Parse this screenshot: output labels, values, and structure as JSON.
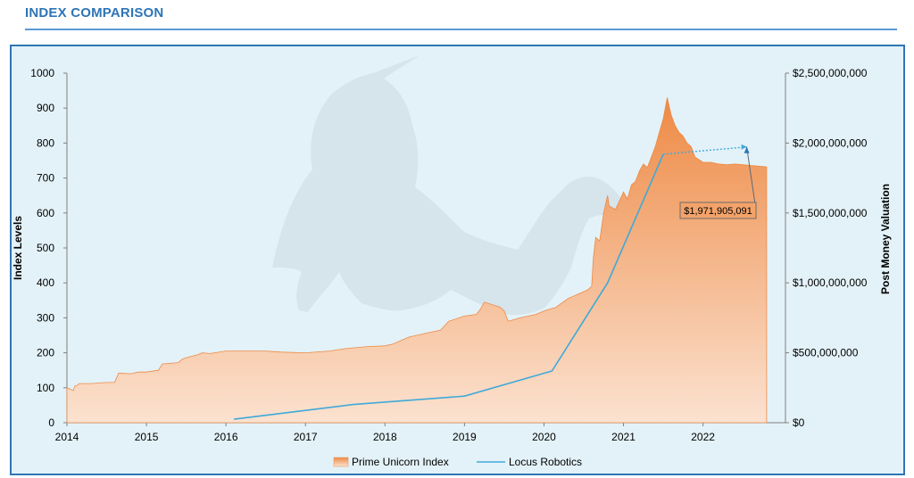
{
  "header": {
    "title": "INDEX COMPARISON"
  },
  "colors": {
    "index_fill_top": "#ee8a45",
    "index_fill_bottom": "#fbe2d0",
    "locus_line": "#3fa9d9",
    "frame": "#2e75b6",
    "panel": "#e3f2f8"
  },
  "chart_data": {
    "type": "area",
    "title": "",
    "ylabel": "Index Levels",
    "y2label": "Post Money Valuation",
    "xlim": [
      2014,
      2022.88
    ],
    "ylim": [
      0,
      1000
    ],
    "y2lim": [
      0,
      2500000000
    ],
    "x_ticks": [
      "2014",
      "2015",
      "2016",
      "2017",
      "2018",
      "2019",
      "2020",
      "2021",
      "2022"
    ],
    "y_ticks": [
      "0",
      "100",
      "200",
      "300",
      "400",
      "500",
      "600",
      "700",
      "800",
      "900",
      "1000"
    ],
    "y2_ticks": [
      "$0",
      "$500,000,000",
      "$1,000,000,000",
      "$1,500,000,000",
      "$2,000,000,000",
      "$2,500,000,000"
    ],
    "grid": false,
    "legend_position": "bottom",
    "series": [
      {
        "name": "Prime Unicorn Index",
        "kind": "area",
        "axis": "left",
        "x": [
          2014.0,
          2014.05,
          2014.08,
          2014.1,
          2014.14,
          2014.15,
          2014.3,
          2014.5,
          2014.6,
          2014.65,
          2014.8,
          2014.9,
          2015.0,
          2015.15,
          2015.2,
          2015.4,
          2015.45,
          2015.5,
          2015.65,
          2015.7,
          2015.8,
          2016.0,
          2016.5,
          2016.7,
          2017.0,
          2017.3,
          2017.5,
          2017.8,
          2018.0,
          2018.1,
          2018.3,
          2018.5,
          2018.7,
          2018.8,
          2019.0,
          2019.15,
          2019.2,
          2019.25,
          2019.45,
          2019.5,
          2019.55,
          2019.7,
          2019.9,
          2020.0,
          2020.15,
          2020.3,
          2020.45,
          2020.55,
          2020.6,
          2020.62,
          2020.65,
          2020.7,
          2020.75,
          2020.8,
          2020.82,
          2020.9,
          2021.0,
          2021.05,
          2021.1,
          2021.15,
          2021.2,
          2021.25,
          2021.3,
          2021.35,
          2021.4,
          2021.45,
          2021.5,
          2021.55,
          2021.6,
          2021.65,
          2021.7,
          2021.75,
          2021.8,
          2021.85,
          2021.9,
          2022.0,
          2022.1,
          2022.2,
          2022.3,
          2022.4,
          2022.5,
          2022.6,
          2022.7,
          2022.8
        ],
        "values": [
          100,
          95,
          92,
          105,
          108,
          112,
          112,
          115,
          115,
          142,
          140,
          145,
          145,
          150,
          168,
          172,
          182,
          186,
          195,
          200,
          198,
          205,
          205,
          202,
          200,
          205,
          212,
          218,
          220,
          225,
          245,
          255,
          265,
          290,
          305,
          310,
          325,
          345,
          330,
          320,
          290,
          300,
          310,
          320,
          330,
          355,
          370,
          380,
          390,
          470,
          530,
          520,
          600,
          650,
          620,
          610,
          660,
          640,
          680,
          690,
          720,
          740,
          730,
          760,
          790,
          830,
          870,
          930,
          880,
          850,
          830,
          820,
          800,
          790,
          760,
          745,
          745,
          740,
          738,
          740,
          738,
          736,
          734,
          732
        ]
      },
      {
        "name": "Locus Robotics",
        "kind": "line",
        "axis": "right",
        "x": [
          2016.1,
          2017.6,
          2019.0,
          2020.1,
          2020.8,
          2021.5,
          2022.55
        ],
        "values": [
          25000000,
          130000000,
          190000000,
          370000000,
          1000000000,
          1920000000,
          1971905091
        ]
      }
    ],
    "annotations": [
      {
        "label": "$1,971,905,091",
        "x": 2022.55,
        "value": 1971905091
      }
    ]
  }
}
